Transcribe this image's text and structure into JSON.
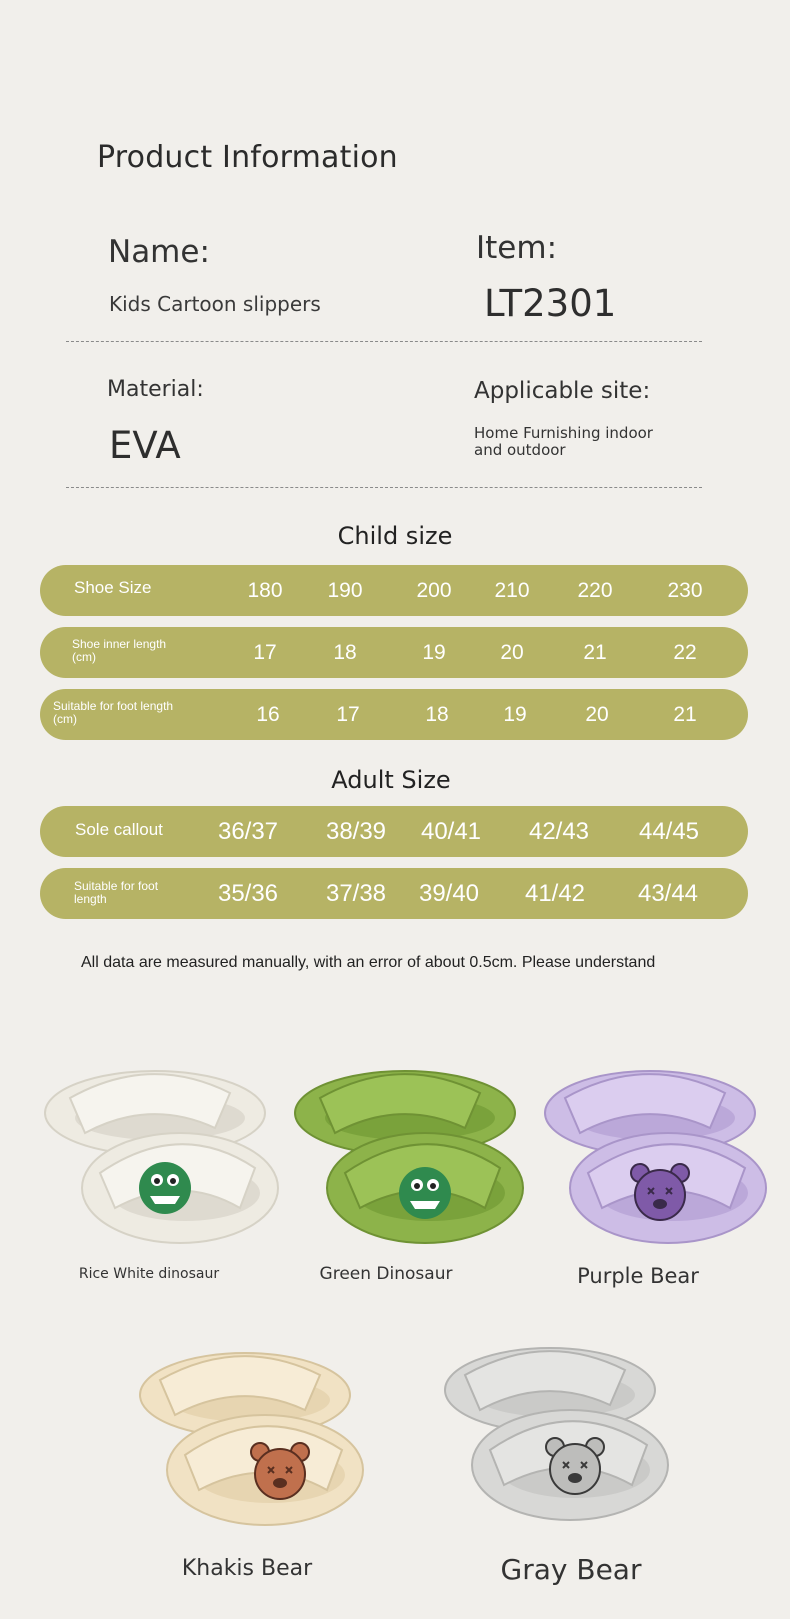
{
  "info": {
    "title": "Product Information",
    "name_label": "Name:",
    "name_value": "Kids Cartoon slippers",
    "item_label": "Item:",
    "item_value": "LT2301",
    "material_label": "Material:",
    "material_value": "EVA",
    "site_label": "Applicable site:",
    "site_value_line1": "Home Furnishing indoor",
    "site_value_line2": "and outdoor"
  },
  "child": {
    "title": "Child size",
    "rows": [
      {
        "label": "Shoe Size",
        "values": [
          "180",
          "190",
          "200",
          "210",
          "220",
          "230"
        ]
      },
      {
        "label_line1": "Shoe inner length",
        "label_line2": "(cm)",
        "values": [
          "17",
          "18",
          "19",
          "20",
          "21",
          "22"
        ]
      },
      {
        "label_line1": "Suitable for foot length",
        "label_line2": "(cm)",
        "values": [
          "16",
          "17",
          "18",
          "19",
          "20",
          "21"
        ]
      }
    ]
  },
  "adult": {
    "title": "Adult Size",
    "rows": [
      {
        "label": "Sole callout",
        "values": [
          "36/37",
          "38/39",
          "40/41",
          "42/43",
          "44/45"
        ]
      },
      {
        "label_line1": "Suitable for foot",
        "label_line2": "length",
        "values": [
          "35/36",
          "37/38",
          "39/40",
          "41/42",
          "43/44"
        ]
      }
    ]
  },
  "note": "All data are measured manually, with an error of about 0.5cm. Please understand",
  "products": [
    {
      "name": "Rice White dinosaur",
      "color": "#eeebe2",
      "accent": "#2f8a4e",
      "icon": "dinosaur-icon"
    },
    {
      "name": "Green Dinosaur",
      "color": "#8db34a",
      "accent": "#2f8a4e",
      "icon": "dinosaur-icon"
    },
    {
      "name": "Purple Bear",
      "color": "#cdbde6",
      "accent": "#7f5aa8",
      "icon": "bear-icon"
    },
    {
      "name": "Khakis Bear",
      "color": "#f1e2c4",
      "accent": "#a05a3c",
      "icon": "bear-icon"
    },
    {
      "name": "Gray Bear",
      "color": "#d8d8d6",
      "accent": "#9a9a9a",
      "icon": "bear-icon"
    }
  ],
  "colors": {
    "background": "#f1efeb",
    "bar": "#b6b365",
    "bar_text": "#ffffff"
  }
}
